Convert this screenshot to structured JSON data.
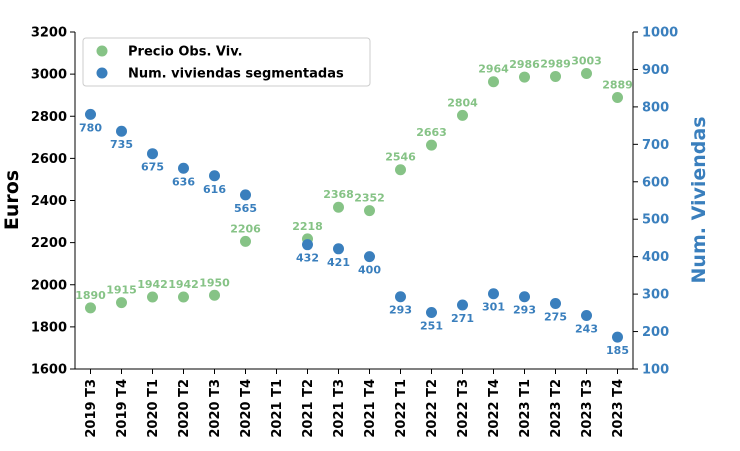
{
  "chart_data": {
    "type": "scatter",
    "categories": [
      "2019 T3",
      "2019 T4",
      "2020 T1",
      "2020 T2",
      "2020 T3",
      "2020 T4",
      "2021 T1",
      "2021 T2",
      "2021 T3",
      "2021 T4",
      "2022 T1",
      "2022 T2",
      "2022 T3",
      "2022 T4",
      "2023 T1",
      "2023 T2",
      "2023 T3",
      "2023 T4"
    ],
    "series": [
      {
        "name": "Precio Obs. Viv.",
        "axis": "left",
        "color": "#86c386",
        "values": [
          1890,
          1915,
          1942,
          1942,
          1950,
          2206,
          null,
          2218,
          2368,
          2352,
          2546,
          2663,
          2804,
          2964,
          2986,
          2989,
          3003,
          2889
        ]
      },
      {
        "name": "Num. viviendas segmentadas",
        "axis": "right",
        "color": "#3a7fbd",
        "values": [
          780,
          735,
          675,
          636,
          616,
          565,
          null,
          432,
          421,
          400,
          293,
          251,
          271,
          301,
          293,
          275,
          243,
          185
        ]
      }
    ],
    "ylabel": "Euros",
    "ylabel_right": "Num. Viviendas",
    "ylim": [
      1600,
      3200
    ],
    "ylim_right": [
      100,
      1000
    ],
    "yticks": [
      1600,
      1800,
      2000,
      2200,
      2400,
      2600,
      2800,
      3000,
      3200
    ],
    "yticks_right": [
      100,
      200,
      300,
      400,
      500,
      600,
      700,
      800,
      900,
      1000
    ],
    "right_axis_color": "#3a7fbd",
    "grid": false,
    "legend": "top-left"
  }
}
